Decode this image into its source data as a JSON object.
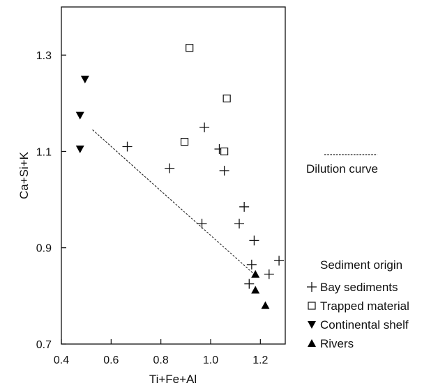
{
  "chart_data": {
    "type": "scatter",
    "title": "",
    "xlabel": "Ti+Fe+Al",
    "ylabel": "Ca+Si+K",
    "xlim": [
      0.4,
      1.3
    ],
    "ylim": [
      0.7,
      1.4
    ],
    "xticks": [
      0.4,
      0.6,
      0.8,
      1.0,
      1.2
    ],
    "yticks": [
      0.7,
      0.9,
      1.1,
      1.3
    ],
    "xtick_labels": [
      "0.4",
      "0.6",
      "0.8",
      "1.0",
      "1.2"
    ],
    "ytick_labels": [
      "0.7",
      "0.9",
      "1.1",
      "1.3"
    ],
    "grid": false,
    "legend_title": "Sediment origin",
    "legend_position": "right",
    "line_legend_label": "Dilution curve",
    "dilution_curve": {
      "x": [
        0.525,
        1.175
      ],
      "y": [
        1.145,
        0.845
      ],
      "style": "dashed"
    },
    "series": [
      {
        "name": "Bay sediments",
        "marker": "plus",
        "x": [
          0.665,
          0.835,
          0.965,
          0.975,
          1.035,
          1.055,
          1.115,
          1.135,
          1.175,
          1.165,
          1.155,
          1.235,
          1.275
        ],
        "y": [
          1.11,
          1.065,
          0.95,
          1.15,
          1.105,
          1.06,
          0.95,
          0.985,
          0.915,
          0.865,
          0.825,
          0.845,
          0.873
        ]
      },
      {
        "name": "Trapped material",
        "marker": "open-square",
        "x": [
          0.915,
          0.895,
          1.065,
          1.055
        ],
        "y": [
          1.315,
          1.12,
          1.21,
          1.1
        ]
      },
      {
        "name": "Continental shelf",
        "marker": "triangle-down",
        "x": [
          0.495,
          0.475,
          0.475
        ],
        "y": [
          1.25,
          1.175,
          1.105
        ]
      },
      {
        "name": "Rivers",
        "marker": "triangle-up",
        "x": [
          1.18,
          1.18,
          1.22
        ],
        "y": [
          0.845,
          0.812,
          0.78
        ]
      }
    ]
  }
}
